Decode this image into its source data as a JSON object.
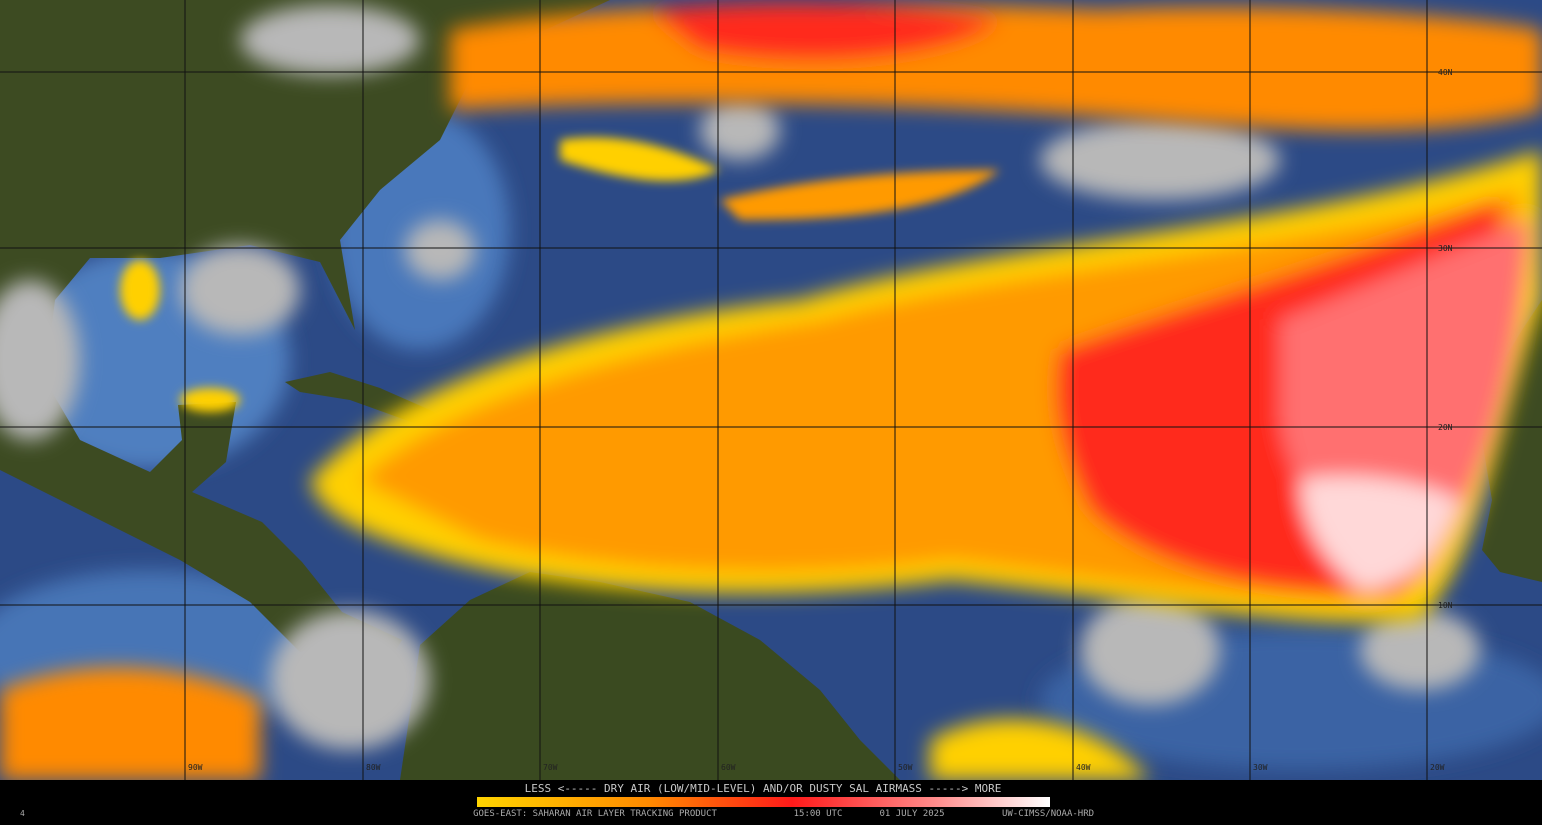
{
  "lat_labels": [
    "40N",
    "30N",
    "20N",
    "10N"
  ],
  "lon_labels": [
    "90W",
    "80W",
    "70W",
    "60W",
    "50W",
    "40W",
    "30W",
    "20W"
  ],
  "legend": {
    "caption": "LESS <----- DRY AIR (LOW/MID-LEVEL) AND/OR DUSTY SAL AIRMASS -----> MORE",
    "footer": [
      "GOES-EAST: SAHARAN AIR LAYER TRACKING PRODUCT",
      "15:00 UTC",
      "01 JULY 2025",
      "UW-CIMSS/NOAA-HRD"
    ]
  },
  "frame_number": "4"
}
